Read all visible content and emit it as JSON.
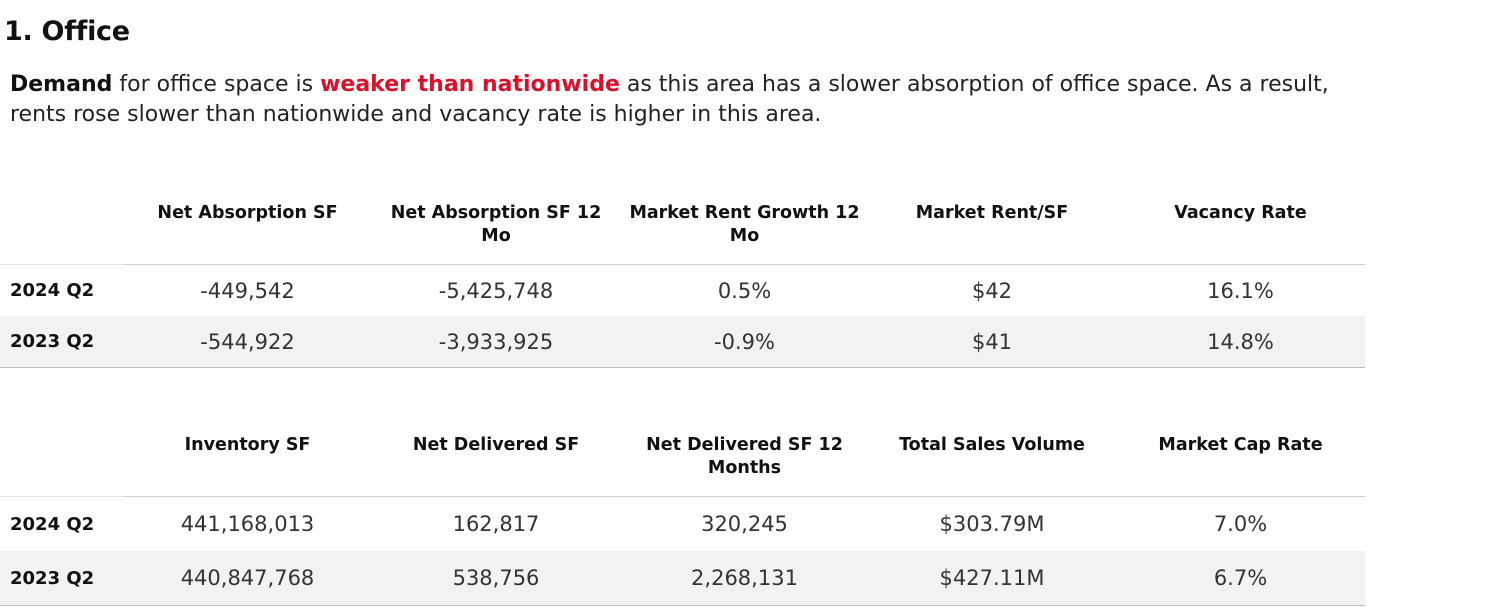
{
  "section": {
    "title": "1. Office"
  },
  "summary": {
    "lead": "Demand",
    "part1": " for office space is ",
    "highlight": "weaker than nationwide",
    "part2": " as this area has a slower absorption of office space. As a result, rents rose slower than nationwide and vacancy rate is higher in this area.",
    "accent_color": "#d9112b"
  },
  "table1": {
    "headers": [
      "Net Absorption SF",
      "Net Absorption SF 12 Mo",
      "Market Rent Growth 12 Mo",
      "Market Rent/SF",
      "Vacancy Rate"
    ],
    "rows": [
      {
        "period": "2024 Q2",
        "cells": [
          "-449,542",
          "-5,425,748",
          "0.5%",
          "$42",
          "16.1%"
        ]
      },
      {
        "period": "2023 Q2",
        "cells": [
          "-544,922",
          "-3,933,925",
          "-0.9%",
          "$41",
          "14.8%"
        ]
      }
    ]
  },
  "table2": {
    "headers": [
      "Inventory SF",
      "Net Delivered SF",
      "Net Delivered SF 12 Months",
      "Total Sales Volume",
      "Market Cap Rate"
    ],
    "rows": [
      {
        "period": "2024 Q2",
        "cells": [
          "441,168,013",
          "162,817",
          "320,245",
          "$303.79M",
          "7.0%"
        ]
      },
      {
        "period": "2023 Q2",
        "cells": [
          "440,847,768",
          "538,756",
          "2,268,131",
          "$427.11M",
          "6.7%"
        ]
      }
    ]
  }
}
